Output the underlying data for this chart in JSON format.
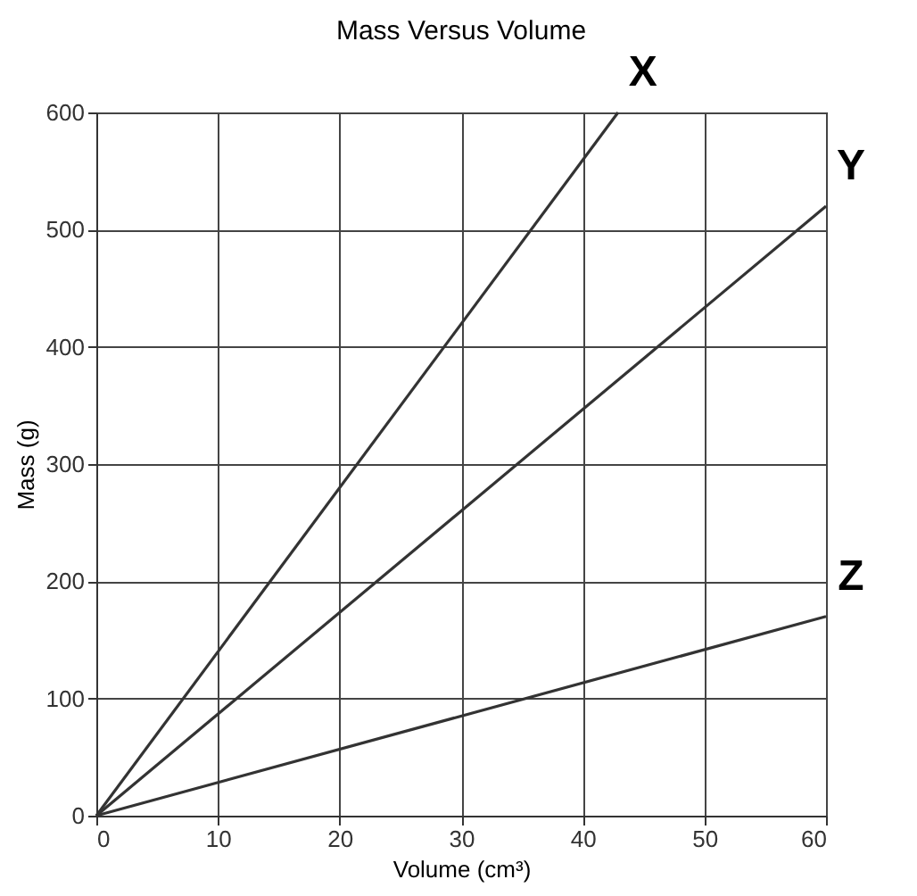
{
  "chart_data": {
    "type": "line",
    "title": "Mass Versus Volume",
    "xlabel": "Volume (cm³)",
    "ylabel": "Mass (g)",
    "xlim": [
      0,
      60
    ],
    "xticks": [
      0,
      10,
      20,
      30,
      40,
      50,
      60
    ],
    "ylim": [
      0,
      600
    ],
    "yticks": [
      0,
      100,
      200,
      300,
      400,
      500,
      600
    ],
    "grid": true,
    "marker": "none",
    "line_style": "solid",
    "series": [
      {
        "name": "X",
        "color": "#333333",
        "x": [
          0,
          42.9
        ],
        "values": [
          0,
          600
        ]
      },
      {
        "name": "Y",
        "color": "#333333",
        "x": [
          0,
          60
        ],
        "values": [
          0,
          520
        ]
      },
      {
        "name": "Z",
        "color": "#333333",
        "x": [
          0,
          60
        ],
        "values": [
          0,
          170
        ]
      }
    ]
  }
}
